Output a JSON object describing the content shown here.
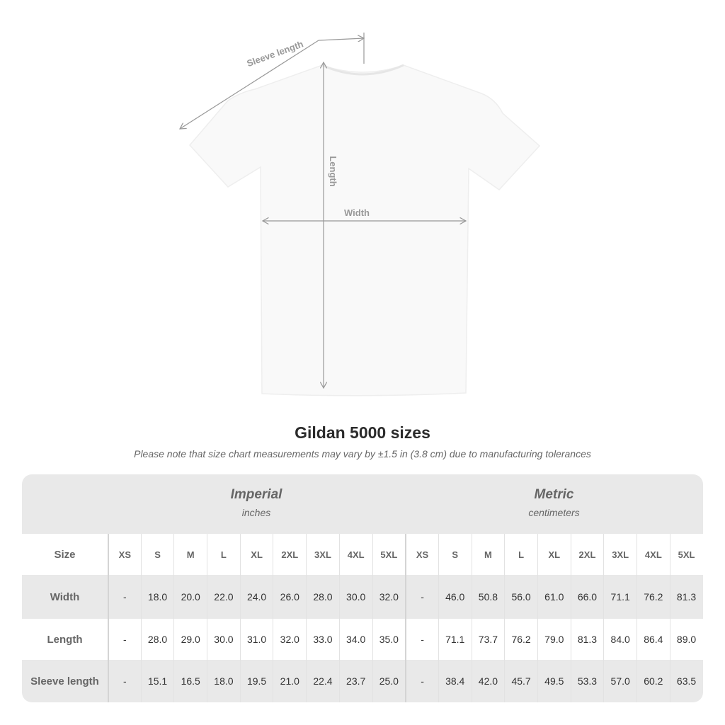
{
  "diagram": {
    "labels": {
      "sleeve": "Sleeve length",
      "length": "Length",
      "width": "Width"
    }
  },
  "title": "Gildan 5000 sizes",
  "note": "Please note that size chart measurements may vary by ±1.5 in (3.8 cm) due to manufacturing tolerances",
  "table": {
    "imperial": {
      "name": "Imperial",
      "unit": "inches"
    },
    "metric": {
      "name": "Metric",
      "unit": "centimeters"
    },
    "size_label": "Size",
    "sizes": [
      "XS",
      "S",
      "M",
      "L",
      "XL",
      "2XL",
      "3XL",
      "4XL",
      "5XL"
    ],
    "rows": [
      {
        "label": "Width",
        "imperial": [
          "-",
          "18.0",
          "20.0",
          "22.0",
          "24.0",
          "26.0",
          "28.0",
          "30.0",
          "32.0"
        ],
        "metric": [
          "-",
          "46.0",
          "50.8",
          "56.0",
          "61.0",
          "66.0",
          "71.1",
          "76.2",
          "81.3"
        ]
      },
      {
        "label": "Length",
        "imperial": [
          "-",
          "28.0",
          "29.0",
          "30.0",
          "31.0",
          "32.0",
          "33.0",
          "34.0",
          "35.0"
        ],
        "metric": [
          "-",
          "71.1",
          "73.7",
          "76.2",
          "79.0",
          "81.3",
          "84.0",
          "86.4",
          "89.0"
        ]
      },
      {
        "label": "Sleeve length",
        "imperial": [
          "-",
          "15.1",
          "16.5",
          "18.0",
          "19.5",
          "21.0",
          "22.4",
          "23.7",
          "25.0"
        ],
        "metric": [
          "-",
          "38.4",
          "42.0",
          "45.7",
          "49.5",
          "53.3",
          "57.0",
          "60.2",
          "63.5"
        ]
      }
    ]
  }
}
